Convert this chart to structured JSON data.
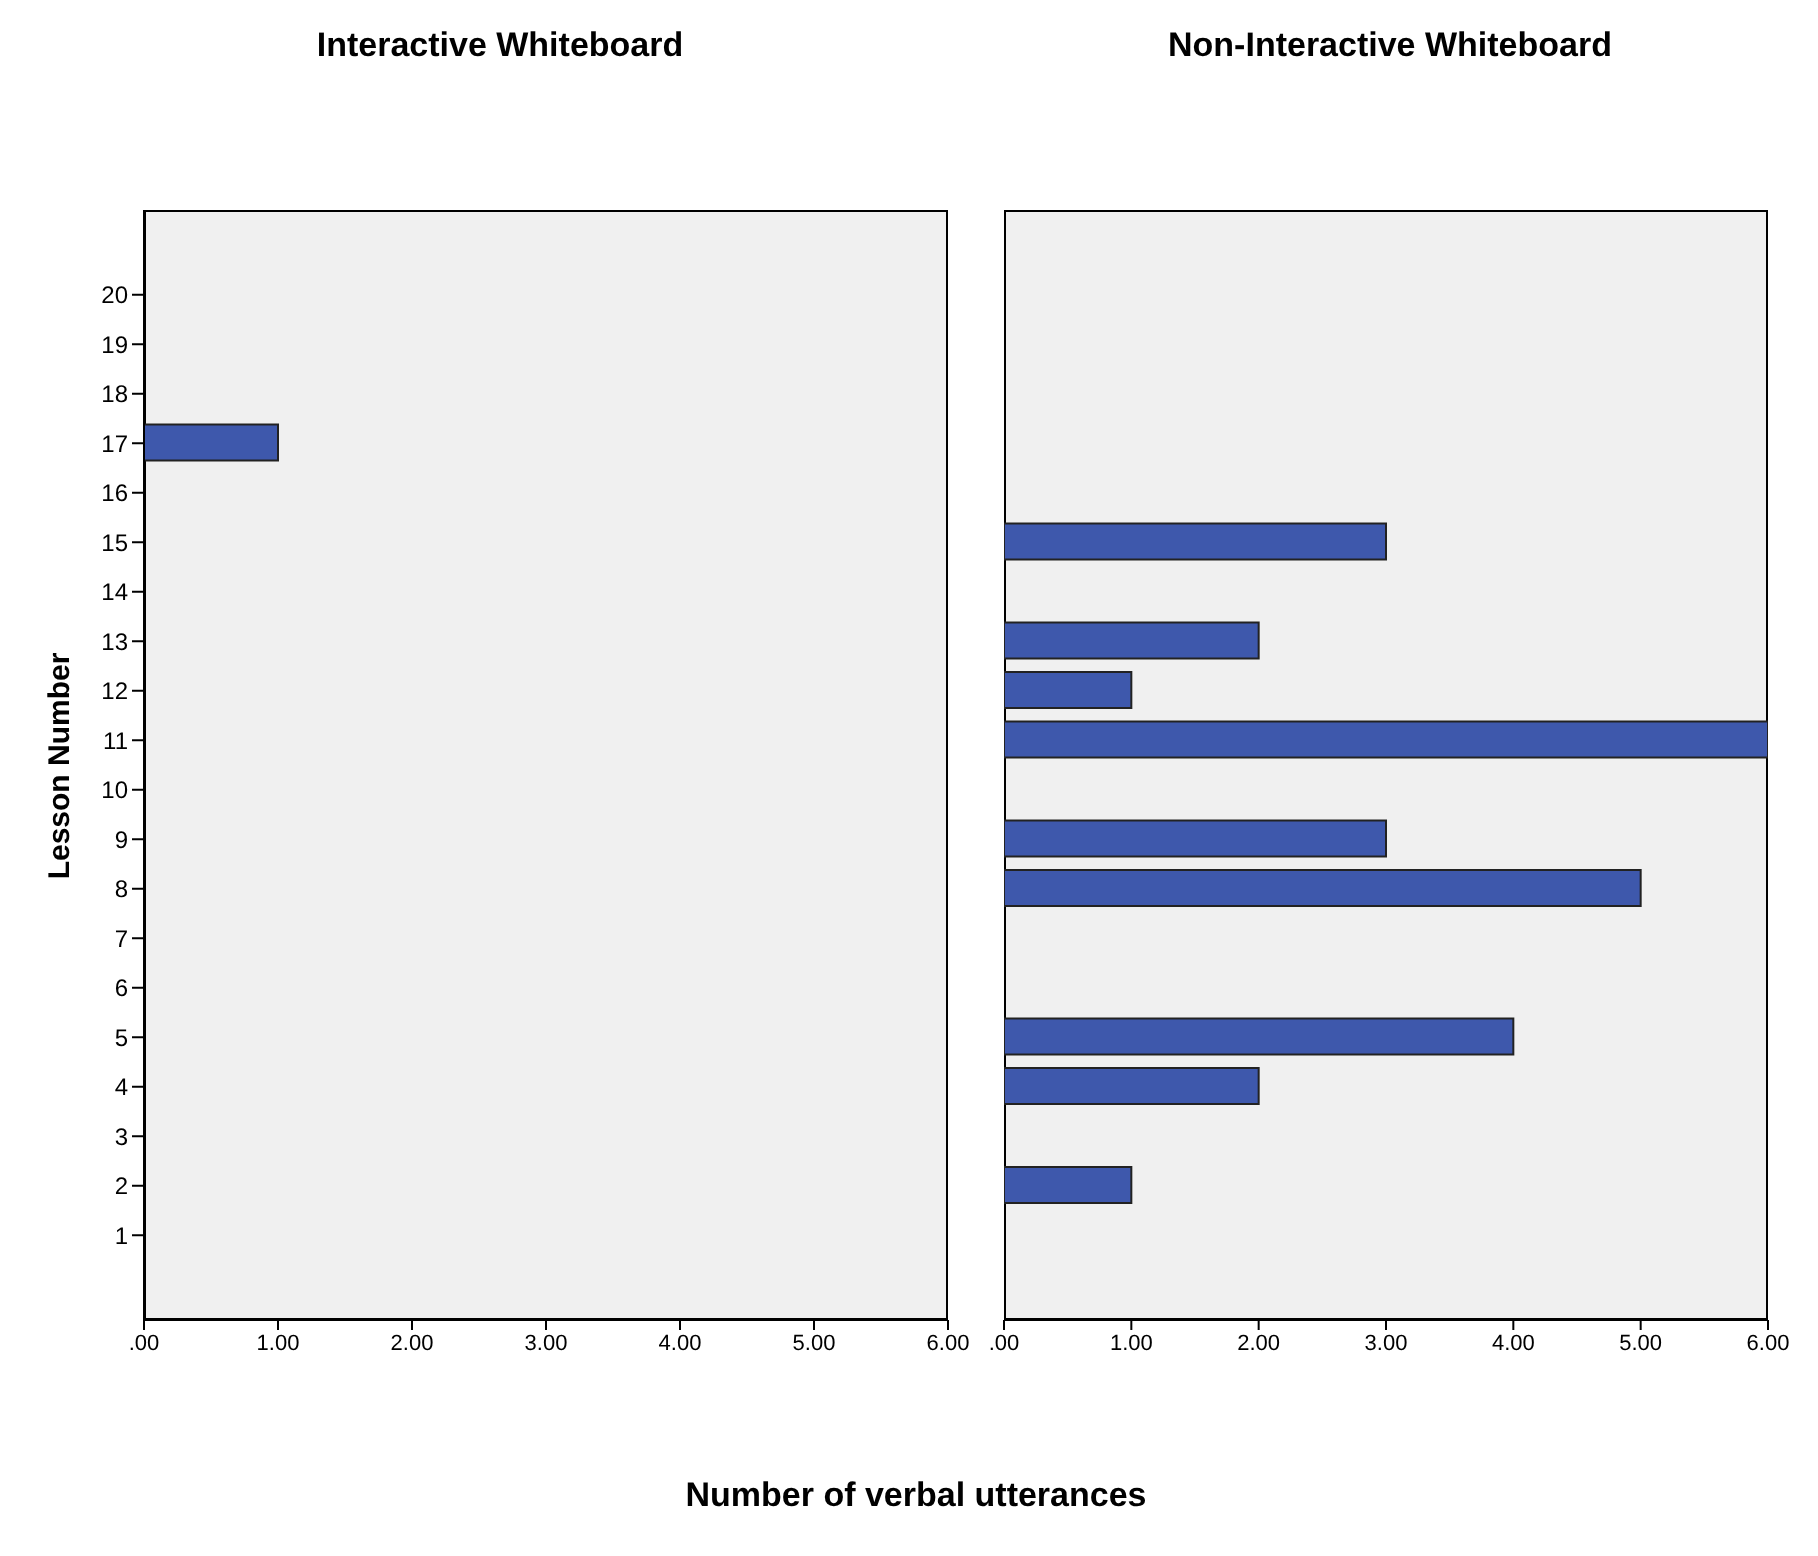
{
  "chart_data": [
    {
      "type": "bar",
      "orientation": "horizontal",
      "title": "Interactive Whiteboard",
      "ylabel": "Lesson Number",
      "categories": [
        "20",
        "19",
        "18",
        "17",
        "16",
        "15",
        "14",
        "13",
        "12",
        "11",
        "10",
        "9",
        "8",
        "7",
        "6",
        "5",
        "4",
        "3",
        "2",
        "1"
      ],
      "values": [
        null,
        null,
        null,
        1,
        null,
        null,
        null,
        null,
        null,
        null,
        null,
        null,
        null,
        null,
        null,
        null,
        null,
        null,
        null,
        null
      ],
      "color": "#3e58ac",
      "xlim": [
        0,
        6
      ],
      "xticks": [
        {
          "value": 0,
          "label": ".00"
        },
        {
          "value": 1,
          "label": "1.00"
        },
        {
          "value": 2,
          "label": "2.00"
        },
        {
          "value": 3,
          "label": "3.00"
        },
        {
          "value": 4,
          "label": "4.00"
        },
        {
          "value": 5,
          "label": "5.00"
        },
        {
          "value": 6,
          "label": "6.00"
        }
      ],
      "legend": false,
      "grid": false
    },
    {
      "type": "bar",
      "orientation": "horizontal",
      "title": "Non-Interactive Whiteboard",
      "xlabel": "Number of verbal utterances",
      "categories": [
        "20",
        "19",
        "18",
        "17",
        "16",
        "15",
        "14",
        "13",
        "12",
        "11",
        "10",
        "9",
        "8",
        "7",
        "6",
        "5",
        "4",
        "3",
        "2",
        "1"
      ],
      "values": [
        null,
        null,
        null,
        null,
        null,
        3,
        null,
        2,
        1,
        6,
        null,
        3,
        5,
        null,
        null,
        4,
        2,
        null,
        1,
        null
      ],
      "color": "#3e58ac",
      "xlim": [
        0,
        6
      ],
      "xticks": [
        {
          "value": 0,
          "label": ".00"
        },
        {
          "value": 1,
          "label": "1.00"
        },
        {
          "value": 2,
          "label": "2.00"
        },
        {
          "value": 3,
          "label": "3.00"
        },
        {
          "value": 4,
          "label": "4.00"
        },
        {
          "value": 5,
          "label": "5.00"
        },
        {
          "value": 6,
          "label": "6.00"
        }
      ],
      "tick_labels": "x",
      "legend": false,
      "grid": false
    }
  ]
}
